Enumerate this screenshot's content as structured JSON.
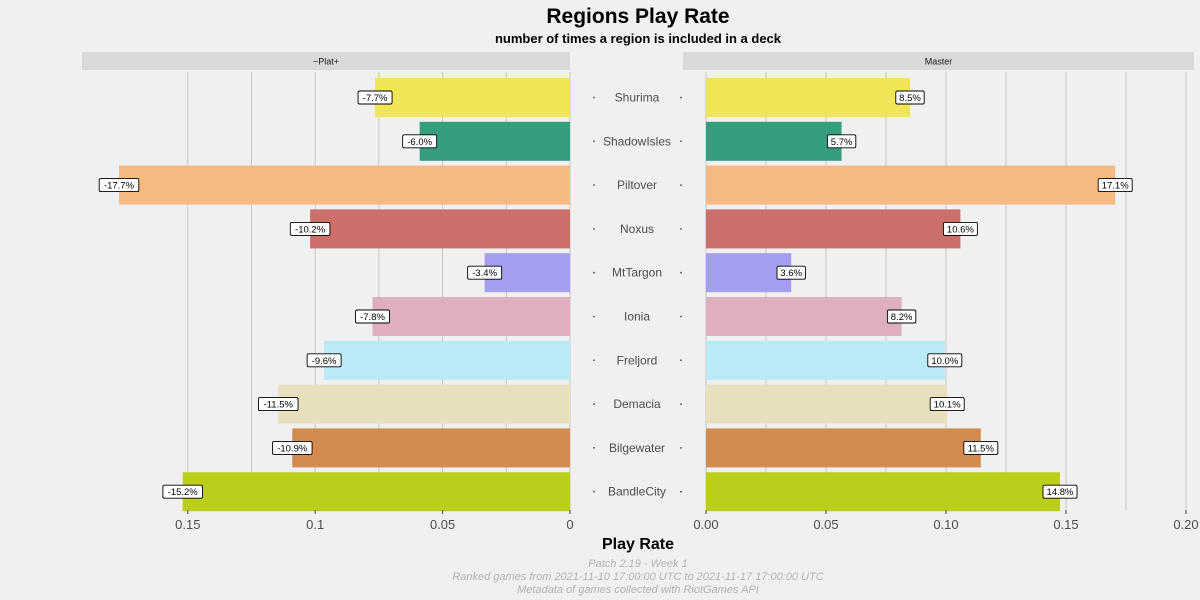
{
  "chart_data": {
    "type": "bar",
    "orientation": "horizontal",
    "title": "Regions Play Rate",
    "subtitle": "number of times a region is included in a deck",
    "xlabel": "Play Rate",
    "categories": [
      "Shurima",
      "ShadowIsles",
      "Piltover",
      "Noxus",
      "MtTargon",
      "Ionia",
      "Freljord",
      "Demacia",
      "Bilgewater",
      "BandleCity"
    ],
    "colors": [
      "#efe654",
      "#369e7f",
      "#f5b981",
      "#cc6e69",
      "#a39ef0",
      "#dfafbd",
      "#b9eaf6",
      "#e8dfbd",
      "#d38a4e",
      "#bbce1b"
    ],
    "panels": [
      {
        "strip": "~Plat+",
        "values": [
          0.0765,
          0.059,
          0.177,
          0.102,
          0.0335,
          0.0775,
          0.0965,
          0.1145,
          0.109,
          0.152
        ],
        "labels": [
          "-7.7%",
          "-6.0%",
          "-17.7%",
          "-10.2%",
          "-3.4%",
          "-7.8%",
          "-9.6%",
          "-11.5%",
          "-10.9%",
          "-15.2%"
        ],
        "xlim": [
          0.18,
          0
        ],
        "ticks": [
          0.15,
          0.1,
          0.05,
          0
        ],
        "tick_labels": [
          "0.15",
          "0.1",
          "0.05",
          "0"
        ],
        "grid": true
      },
      {
        "strip": "Master",
        "values": [
          0.085,
          0.0565,
          0.1705,
          0.106,
          0.0355,
          0.0815,
          0.0995,
          0.1005,
          0.1145,
          0.1475
        ],
        "labels": [
          "8.5%",
          "5.7%",
          "17.1%",
          "10.6%",
          "3.6%",
          "8.2%",
          "10.0%",
          "10.1%",
          "11.5%",
          "14.8%"
        ],
        "xlim": [
          0,
          0.2
        ],
        "ticks": [
          0.0,
          0.05,
          0.1,
          0.15,
          0.2
        ],
        "tick_labels": [
          "0.00",
          "0.05",
          "0.10",
          "0.15",
          "0.20"
        ],
        "grid": true
      }
    ],
    "caption": [
      "Patch 2.19 - Week 1",
      "Ranked games from 2021-11-10 17:00:00 UTC to 2021-11-17 17:00:00 UTC",
      "Metadata of games collected with RiotGames API"
    ]
  }
}
